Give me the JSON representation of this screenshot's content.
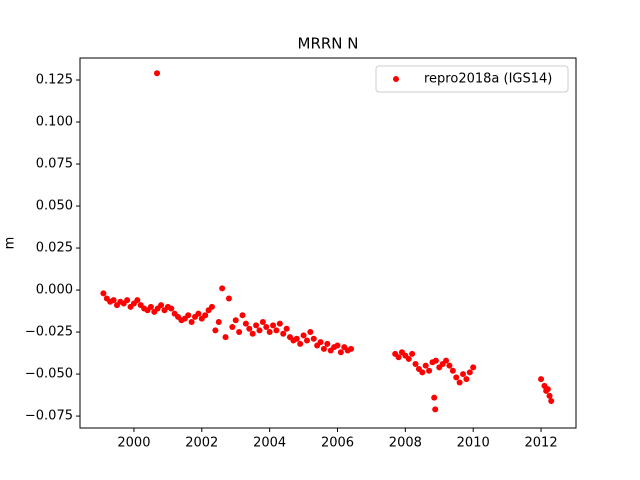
{
  "chart_data": {
    "type": "scatter",
    "title": "MRRN N",
    "y_label": "m",
    "x": [
      1999.1,
      1999.2,
      1999.3,
      1999.4,
      1999.5,
      1999.6,
      1999.7,
      1999.8,
      1999.9,
      2000.0,
      2000.1,
      2000.2,
      2000.3,
      2000.4,
      2000.5,
      2000.6,
      2000.7,
      2000.8,
      2000.9,
      2001.0,
      2001.1,
      2001.2,
      2001.3,
      2001.4,
      2001.5,
      2001.6,
      2001.7,
      2001.8,
      2001.9,
      2002.0,
      2002.1,
      2002.2,
      2002.3,
      2002.4,
      2002.5,
      2002.6,
      2002.7,
      2002.8,
      2002.9,
      2003.0,
      2003.1,
      2003.2,
      2003.3,
      2003.4,
      2003.5,
      2003.6,
      2003.7,
      2003.8,
      2003.9,
      2004.0,
      2004.1,
      2004.2,
      2004.3,
      2004.4,
      2004.5,
      2004.6,
      2004.7,
      2004.8,
      2004.9,
      2005.0,
      2005.1,
      2005.2,
      2005.3,
      2005.4,
      2005.5,
      2005.6,
      2005.7,
      2005.8,
      2005.9,
      2006.0,
      2006.1,
      2006.2,
      2006.3,
      2006.4,
      2007.7,
      2007.8,
      2007.9,
      2008.0,
      2008.1,
      2008.2,
      2008.3,
      2008.4,
      2008.5,
      2008.6,
      2008.7,
      2008.8,
      2008.9,
      2009.0,
      2009.1,
      2009.2,
      2009.3,
      2009.4,
      2009.5,
      2009.6,
      2009.7,
      2009.8,
      2009.9,
      2010.0,
      2008.85,
      2008.88,
      2000.68,
      2012.0,
      2012.1,
      2012.15,
      2012.2,
      2012.25,
      2012.3
    ],
    "series": [
      {
        "name": "repro2018a (IGS14)",
        "color": "#ff0000",
        "values": [
          -0.002,
          -0.005,
          -0.007,
          -0.006,
          -0.009,
          -0.007,
          -0.008,
          -0.006,
          -0.01,
          -0.008,
          -0.006,
          -0.009,
          -0.011,
          -0.012,
          -0.01,
          -0.013,
          -0.011,
          -0.009,
          -0.012,
          -0.01,
          -0.011,
          -0.014,
          -0.016,
          -0.018,
          -0.017,
          -0.015,
          -0.019,
          -0.016,
          -0.014,
          -0.017,
          -0.015,
          -0.012,
          -0.01,
          -0.024,
          -0.019,
          0.001,
          -0.028,
          -0.005,
          -0.022,
          -0.018,
          -0.025,
          -0.015,
          -0.02,
          -0.023,
          -0.026,
          -0.021,
          -0.024,
          -0.019,
          -0.022,
          -0.025,
          -0.021,
          -0.024,
          -0.02,
          -0.026,
          -0.023,
          -0.028,
          -0.03,
          -0.029,
          -0.032,
          -0.027,
          -0.03,
          -0.025,
          -0.029,
          -0.033,
          -0.031,
          -0.035,
          -0.032,
          -0.036,
          -0.034,
          -0.033,
          -0.037,
          -0.034,
          -0.036,
          -0.035,
          -0.038,
          -0.04,
          -0.037,
          -0.039,
          -0.041,
          -0.038,
          -0.044,
          -0.047,
          -0.049,
          -0.045,
          -0.048,
          -0.043,
          -0.042,
          -0.046,
          -0.044,
          -0.042,
          -0.045,
          -0.048,
          -0.052,
          -0.055,
          -0.05,
          -0.053,
          -0.049,
          -0.046,
          -0.064,
          -0.071,
          0.129,
          -0.053,
          -0.057,
          -0.06,
          -0.059,
          -0.063,
          -0.066
        ]
      }
    ],
    "xlim": [
      1998.41,
      2013.03
    ],
    "ylim": [
      -0.0821,
      0.1381
    ],
    "xticks": [
      2000,
      2002,
      2004,
      2006,
      2008,
      2010,
      2012
    ],
    "yticks": [
      {
        "value": -0.075,
        "label": "−0.075"
      },
      {
        "value": -0.05,
        "label": "−0.050"
      },
      {
        "value": -0.025,
        "label": "−0.025"
      },
      {
        "value": 0,
        "label": "0.000"
      },
      {
        "value": 0.025,
        "label": "0.025"
      },
      {
        "value": 0.05,
        "label": "0.050"
      },
      {
        "value": 0.075,
        "label": "0.075"
      },
      {
        "value": 0.1,
        "label": "0.100"
      },
      {
        "value": 0.125,
        "label": "0.125"
      }
    ],
    "legend": "upper right"
  }
}
